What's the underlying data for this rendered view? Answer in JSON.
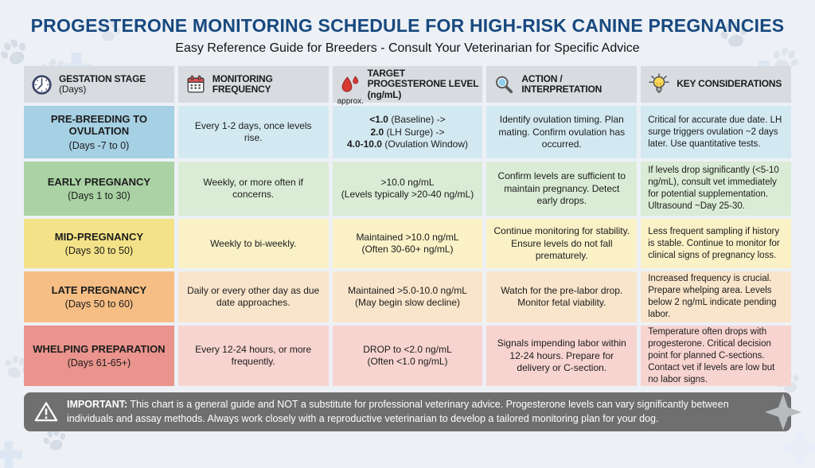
{
  "title": "PROGESTERONE MONITORING SCHEDULE FOR HIGH-RISK CANINE PREGNANCIES",
  "subtitle": "Easy Reference Guide for Breeders - Consult Your Veterinarian for Specific Advice",
  "colors": {
    "title_blue": "#17497f",
    "header_bg": "#d8dbe0",
    "footer_bg": "#6f6f6f",
    "row_blue": "#a6d0e3",
    "row_green": "#aad2a4",
    "row_yellow": "#f3e288",
    "row_orange": "#f6be85",
    "row_red": "#ea948d"
  },
  "header": {
    "columns": [
      {
        "icon": "clock-icon",
        "label": "GESTATION STAGE",
        "sublabel": "(Days)"
      },
      {
        "icon": "calendar-icon",
        "label": "MONITORING FREQUENCY"
      },
      {
        "icon": "blood-drop-icon",
        "icon_caption": "approx.",
        "label": "TARGET PROGESTERONE LEVEL (ng/mL)"
      },
      {
        "icon": "magnifier-icon",
        "label": "ACTION / INTERPRETATION"
      },
      {
        "icon": "lightbulb-icon",
        "label": "KEY CONSIDERATIONS"
      }
    ]
  },
  "rows": [
    {
      "stage": "PRE-BREEDING TO OVULATION",
      "days": "(Days -7 to 0)",
      "frequency": "Every 1-2 days, once levels rise.",
      "target_lines": [
        {
          "b": "<1.0",
          "t": " (Baseline) ->"
        },
        {
          "b": "2.0",
          "t": " (LH Surge) ->"
        },
        {
          "b": "4.0-10.0",
          "t": " (Ovulation Window)"
        }
      ],
      "action": "Identify ovulation timing. Plan mating. Confirm ovulation has occurred.",
      "considerations": "Critical for accurate due date. LH surge triggers ovulation ~2 days later. Use quantitative tests.",
      "stage_bg": "#a6d0e3",
      "cell_bg": "#d3e9f2"
    },
    {
      "stage": "EARLY PREGNANCY",
      "days": "(Days 1 to 30)",
      "frequency": "Weekly, or more often if concerns.",
      "target_lines": [
        {
          "b": "",
          "t": ">10.0 ng/mL"
        },
        {
          "b": "",
          "t": "(Levels typically >20-40 ng/mL)"
        }
      ],
      "action": "Confirm levels are sufficient to maintain pregnancy. Detect early drops.",
      "considerations": "If levels drop significantly (<5-10 ng/mL), consult vet immediately for potential supplementation. Ultrasound ~Day 25-30.",
      "stage_bg": "#aad2a4",
      "cell_bg": "#daecd5"
    },
    {
      "stage": "MID-PREGNANCY",
      "days": "(Days 30 to 50)",
      "frequency": "Weekly to bi-weekly.",
      "target_lines": [
        {
          "b": "",
          "t": "Maintained >10.0 ng/mL"
        },
        {
          "b": "",
          "t": "(Often 30-60+ ng/mL)"
        }
      ],
      "action": "Continue monitoring for stability. Ensure levels do not fall prematurely.",
      "considerations": "Less frequent sampling if history is stable. Continue to monitor for clinical signs of pregnancy loss.",
      "stage_bg": "#f3e288",
      "cell_bg": "#faf1c7"
    },
    {
      "stage": "LATE PREGNANCY",
      "days": "(Days 50 to 60)",
      "frequency": "Daily or every other day as due date approaches.",
      "target_lines": [
        {
          "b": "",
          "t": "Maintained >5.0-10.0 ng/mL"
        },
        {
          "b": "",
          "t": "(May begin slow decline)"
        }
      ],
      "action": "Watch for the pre-labor drop. Monitor fetal viability.",
      "considerations": "Increased frequency is crucial. Prepare whelping area. Levels below 2 ng/mL indicate pending labor.",
      "stage_bg": "#f6be85",
      "cell_bg": "#f9e5cb"
    },
    {
      "stage": "WHELPING PREPARATION",
      "days": "(Days 61-65+)",
      "frequency": "Every 12-24 hours, or more frequently.",
      "target_lines": [
        {
          "b": "",
          "t": "DROP to <2.0 ng/mL"
        },
        {
          "b": "",
          "t": "(Often <1.0 ng/mL)"
        }
      ],
      "action": "Signals impending labor within 12-24 hours. Prepare for delivery or C-section.",
      "considerations": "Temperature often drops with progesterone. Critical decision point for planned C-sections. Contact vet if levels are low but no labor signs.",
      "stage_bg": "#ea948d",
      "cell_bg": "#f7d4d0"
    }
  ],
  "footer": {
    "label": "IMPORTANT:",
    "text": " This chart is a general guide and NOT a substitute for professional veterinary advice. Progesterone levels can vary significantly between individuals and assay methods. Always work closely with a reproductive veterinarian to develop a tailored monitoring plan for your dog."
  }
}
